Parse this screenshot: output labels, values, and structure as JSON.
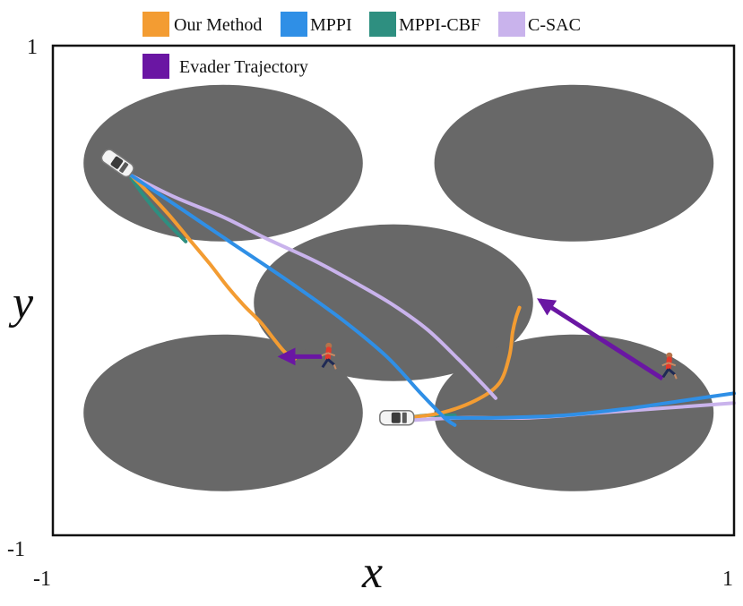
{
  "chart_data": {
    "type": "line",
    "xlabel": "x",
    "ylabel": "y",
    "xlim": [
      -1,
      1
    ],
    "ylim": [
      -1,
      1
    ],
    "x_ticks": [
      "-1",
      "1"
    ],
    "y_ticks": [
      "-1",
      "1"
    ],
    "grid": false,
    "legend_position": "top",
    "colors": {
      "our_method": "#f39c32",
      "mppi": "#2f8fe6",
      "mppi_cbf": "#2e8f80",
      "csac": "#c9b3ec",
      "evader": "#6a16a3",
      "obstacle": "#686868"
    },
    "legend": [
      {
        "label": "Our Method",
        "color": "#f39c32"
      },
      {
        "label": "MPPI",
        "color": "#2f8fe6"
      },
      {
        "label": "MPPI-CBF",
        "color": "#2e8f80"
      },
      {
        "label": "C-SAC",
        "color": "#c9b3ec"
      },
      {
        "label": "Evader Trajectory",
        "color": "#6a16a3"
      }
    ],
    "obstacles": [
      {
        "cx": -0.5,
        "cy": 0.52,
        "rx": 0.41,
        "ry": 0.32
      },
      {
        "cx": 0.53,
        "cy": 0.52,
        "rx": 0.41,
        "ry": 0.32
      },
      {
        "cx": 0.0,
        "cy": -0.05,
        "rx": 0.41,
        "ry": 0.32
      },
      {
        "cx": -0.5,
        "cy": -0.5,
        "rx": 0.41,
        "ry": 0.32
      },
      {
        "cx": 0.53,
        "cy": -0.5,
        "rx": 0.41,
        "ry": 0.32
      }
    ],
    "pursuers": [
      {
        "x": -0.81,
        "y": 0.52,
        "angle": 35
      },
      {
        "x": 0.01,
        "y": -0.52,
        "angle": 0
      }
    ],
    "evaders": [
      {
        "x": -0.19,
        "y": -0.27
      },
      {
        "x": 0.81,
        "y": -0.31
      }
    ],
    "series": [
      {
        "name": "MPPI-CBF",
        "color": "#2e8f80",
        "segments": [
          [
            [
              -0.77,
              0.46
            ],
            [
              -0.74,
              0.4
            ],
            [
              -0.7,
              0.33
            ],
            [
              -0.66,
              0.27
            ],
            [
              -0.61,
              0.2
            ]
          ],
          [
            [
              0.04,
              -0.52
            ],
            [
              0.1,
              -0.51
            ],
            [
              0.18,
              -0.51
            ]
          ]
        ]
      },
      {
        "name": "Our Method",
        "color": "#f39c32",
        "segments": [
          [
            [
              -0.77,
              0.47
            ],
            [
              -0.72,
              0.4
            ],
            [
              -0.66,
              0.31
            ],
            [
              -0.6,
              0.21
            ],
            [
              -0.54,
              0.11
            ],
            [
              -0.49,
              0.02
            ],
            [
              -0.44,
              -0.06
            ],
            [
              -0.39,
              -0.13
            ],
            [
              -0.35,
              -0.2
            ],
            [
              -0.32,
              -0.25
            ],
            [
              -0.29,
              -0.28
            ]
          ],
          [
            [
              0.04,
              -0.52
            ],
            [
              0.14,
              -0.5
            ],
            [
              0.24,
              -0.45
            ],
            [
              0.31,
              -0.38
            ],
            [
              0.34,
              -0.27
            ],
            [
              0.35,
              -0.17
            ],
            [
              0.36,
              -0.11
            ],
            [
              0.37,
              -0.07
            ]
          ]
        ]
      },
      {
        "name": "C-SAC",
        "color": "#c9b3ec",
        "segments": [
          [
            [
              -0.77,
              0.47
            ],
            [
              -0.64,
              0.38
            ],
            [
              -0.5,
              0.3
            ],
            [
              -0.37,
              0.21
            ],
            [
              -0.23,
              0.12
            ],
            [
              -0.11,
              0.03
            ],
            [
              0.0,
              -0.06
            ],
            [
              0.1,
              -0.16
            ],
            [
              0.19,
              -0.28
            ],
            [
              0.26,
              -0.38
            ],
            [
              0.3,
              -0.44
            ]
          ],
          [
            [
              0.05,
              -0.53
            ],
            [
              0.2,
              -0.52
            ],
            [
              0.4,
              -0.52
            ],
            [
              0.6,
              -0.5
            ],
            [
              0.8,
              -0.48
            ],
            [
              1.0,
              -0.46
            ]
          ]
        ]
      },
      {
        "name": "MPPI",
        "color": "#2f8fe6",
        "segments": [
          [
            [
              -0.77,
              0.47
            ],
            [
              -0.62,
              0.33
            ],
            [
              -0.46,
              0.18
            ],
            [
              -0.3,
              0.03
            ],
            [
              -0.15,
              -0.12
            ],
            [
              -0.02,
              -0.27
            ],
            [
              0.08,
              -0.42
            ],
            [
              0.15,
              -0.52
            ],
            [
              0.18,
              -0.55
            ]
          ],
          [
            [
              0.15,
              -0.52
            ],
            [
              0.3,
              -0.52
            ],
            [
              0.5,
              -0.51
            ],
            [
              0.7,
              -0.48
            ],
            [
              0.85,
              -0.45
            ],
            [
              1.0,
              -0.42
            ]
          ]
        ]
      }
    ],
    "evader_arrows": [
      {
        "from": [
          -0.21,
          -0.27
        ],
        "to": [
          -0.33,
          -0.27
        ]
      },
      {
        "from": [
          0.79,
          -0.36
        ],
        "to": [
          0.43,
          -0.04
        ]
      }
    ]
  }
}
